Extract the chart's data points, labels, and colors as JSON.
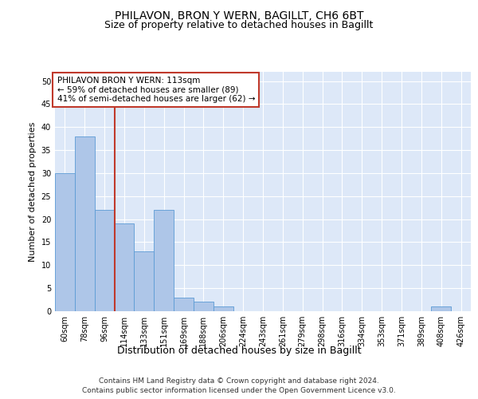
{
  "title": "PHILAVON, BRON Y WERN, BAGILLT, CH6 6BT",
  "subtitle": "Size of property relative to detached houses in Bagillt",
  "xlabel": "Distribution of detached houses by size in Bagillt",
  "ylabel": "Number of detached properties",
  "categories": [
    "60sqm",
    "78sqm",
    "96sqm",
    "114sqm",
    "133sqm",
    "151sqm",
    "169sqm",
    "188sqm",
    "206sqm",
    "224sqm",
    "243sqm",
    "261sqm",
    "279sqm",
    "298sqm",
    "316sqm",
    "334sqm",
    "353sqm",
    "371sqm",
    "389sqm",
    "408sqm",
    "426sqm"
  ],
  "values": [
    30,
    38,
    22,
    19,
    13,
    22,
    3,
    2,
    1,
    0,
    0,
    0,
    0,
    0,
    0,
    0,
    0,
    0,
    0,
    1,
    0
  ],
  "bar_color": "#aec6e8",
  "bar_edge_color": "#5b9bd5",
  "reference_line_color": "#c0392b",
  "annotation_text": "PHILAVON BRON Y WERN: 113sqm\n← 59% of detached houses are smaller (89)\n41% of semi-detached houses are larger (62) →",
  "annotation_box_color": "#ffffff",
  "annotation_box_edge_color": "#c0392b",
  "ylim": [
    0,
    52
  ],
  "yticks": [
    0,
    5,
    10,
    15,
    20,
    25,
    30,
    35,
    40,
    45,
    50
  ],
  "background_color": "#dde8f8",
  "grid_color": "#ffffff",
  "footer_line1": "Contains HM Land Registry data © Crown copyright and database right 2024.",
  "footer_line2": "Contains public sector information licensed under the Open Government Licence v3.0.",
  "title_fontsize": 10,
  "subtitle_fontsize": 9,
  "xlabel_fontsize": 9,
  "ylabel_fontsize": 8,
  "tick_fontsize": 7,
  "annotation_fontsize": 7.5,
  "footer_fontsize": 6.5
}
